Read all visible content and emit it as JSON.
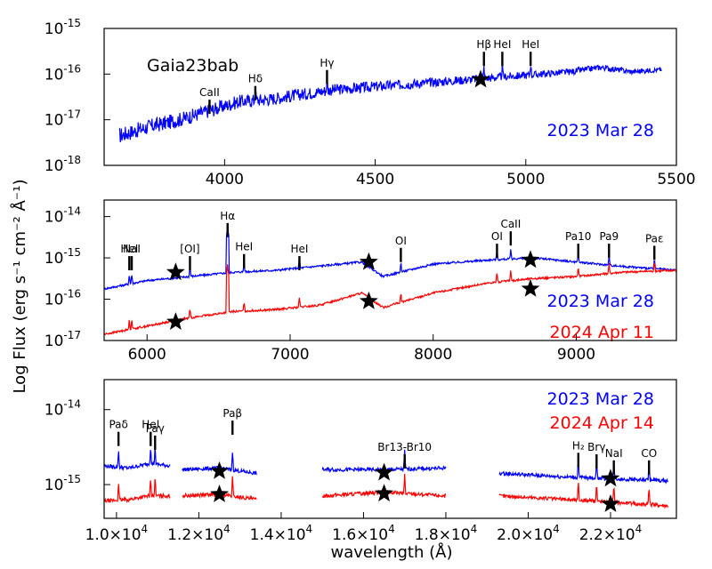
{
  "chart_data": [
    {
      "type": "line",
      "object": "Gaia23bab",
      "xlim": [
        3600,
        5500
      ],
      "ylim_log10": [
        -18,
        -15
      ],
      "xticks": [
        4000,
        4500,
        5000,
        5500
      ],
      "xtick_labels": [
        "4000",
        "4500",
        "5000",
        "5500"
      ],
      "ytick_labels": [
        {
          "base": "10",
          "exp": "-15"
        },
        {
          "base": "10",
          "exp": "-16"
        },
        {
          "base": "10",
          "exp": "-17"
        },
        {
          "base": "10",
          "exp": "-18"
        }
      ],
      "series": [
        {
          "name": "2023 Mar 28",
          "color": "#0000ff",
          "x": [
            3650,
            3750,
            3850,
            3950,
            4050,
            4150,
            4250,
            4350,
            4450,
            4550,
            4650,
            4750,
            4850,
            4950,
            5050,
            5150,
            5250,
            5350,
            5450
          ],
          "log_flux": [
            -17.35,
            -17.15,
            -17.0,
            -16.8,
            -16.6,
            -16.55,
            -16.45,
            -16.35,
            -16.3,
            -16.25,
            -16.2,
            -16.15,
            -16.1,
            -16.05,
            -16.0,
            -15.95,
            -15.85,
            -15.95,
            -15.9
          ]
        }
      ],
      "photometry": [
        {
          "x": 4850,
          "log_flux": -16.12
        }
      ],
      "line_labels": [
        {
          "text": "CaII",
          "x": 3950,
          "log_flux": -16.6
        },
        {
          "text": "Hδ",
          "x": 4102,
          "log_flux": -16.3
        },
        {
          "text": "Hγ",
          "x": 4340,
          "log_flux": -15.95
        },
        {
          "text": "Hβ",
          "x": 4861,
          "log_flux": -15.55
        },
        {
          "text": "HeI",
          "x": 4922,
          "log_flux": -15.55
        },
        {
          "text": "HeI",
          "x": 5016,
          "log_flux": -15.55
        }
      ],
      "legend": [
        {
          "text": "2023 Mar 28",
          "color": "#0000ff"
        }
      ]
    },
    {
      "type": "line",
      "xlim": [
        5700,
        9700
      ],
      "ylim_log10": [
        -17,
        -13.6
      ],
      "xticks": [
        6000,
        7000,
        8000,
        9000
      ],
      "xtick_labels": [
        "6000",
        "7000",
        "8000",
        "9000"
      ],
      "ytick_labels": [
        {
          "base": "10",
          "exp": "-14"
        },
        {
          "base": "10",
          "exp": "-15"
        },
        {
          "base": "10",
          "exp": "-16"
        },
        {
          "base": "10",
          "exp": "-17"
        }
      ],
      "series": [
        {
          "name": "2023 Mar 28",
          "color": "#0000ff",
          "x": [
            5700,
            6000,
            6300,
            6600,
            6900,
            7200,
            7500,
            7650,
            8000,
            8400,
            8700,
            9000,
            9300,
            9700
          ],
          "log_flux": [
            -15.75,
            -15.55,
            -15.45,
            -15.35,
            -15.3,
            -15.2,
            -15.1,
            -15.45,
            -15.15,
            -15.05,
            -15.0,
            -15.1,
            -15.2,
            -15.3
          ]
        },
        {
          "name": "2024 Apr 11",
          "color": "#ff0000",
          "x": [
            5700,
            6000,
            6300,
            6600,
            6900,
            7200,
            7500,
            7650,
            8000,
            8400,
            8700,
            9000,
            9300,
            9700
          ],
          "log_flux": [
            -16.85,
            -16.65,
            -16.45,
            -16.3,
            -16.25,
            -16.15,
            -15.85,
            -16.2,
            -15.85,
            -15.6,
            -15.5,
            -15.45,
            -15.35,
            -15.3
          ]
        }
      ],
      "photometry": [
        {
          "x": 6200,
          "log_flux": -15.35
        },
        {
          "x": 7550,
          "log_flux": -15.1
        },
        {
          "x": 8680,
          "log_flux": -15.05
        },
        {
          "x": 6200,
          "log_flux": -16.55
        },
        {
          "x": 7550,
          "log_flux": -16.05
        },
        {
          "x": 8680,
          "log_flux": -15.75
        }
      ],
      "line_labels": [
        {
          "text": "HeI",
          "x": 5876,
          "log_flux": -15.0
        },
        {
          "text": "NaI",
          "x": 5893,
          "log_flux": -15.0
        },
        {
          "text": "[OI]",
          "x": 6300,
          "log_flux": -15.0
        },
        {
          "text": "Hα",
          "x": 6563,
          "log_flux": -14.2
        },
        {
          "text": "HeI",
          "x": 6678,
          "log_flux": -14.95
        },
        {
          "text": "HeI",
          "x": 7065,
          "log_flux": -15.0
        },
        {
          "text": "OI",
          "x": 7774,
          "log_flux": -14.8
        },
        {
          "text": "OI",
          "x": 8446,
          "log_flux": -14.7
        },
        {
          "text": "CaII",
          "x": 8542,
          "log_flux": -14.4
        },
        {
          "text": "Pa10",
          "x": 9014,
          "log_flux": -14.7
        },
        {
          "text": "Pa9",
          "x": 9229,
          "log_flux": -14.7
        },
        {
          "text": "Paε",
          "x": 9546,
          "log_flux": -14.75
        }
      ],
      "legend": [
        {
          "text": "2023 Mar 28",
          "color": "#0000ff"
        },
        {
          "text": "2024 Apr 11",
          "color": "#ff0000"
        }
      ]
    },
    {
      "type": "line",
      "xlim": [
        9700,
        23600
      ],
      "ylim_log10": [
        -15.45,
        -13.6
      ],
      "xticks": [
        10000,
        12000,
        14000,
        16000,
        18000,
        20000,
        22000
      ],
      "xtick_labels": [
        {
          "mant": "1.0×10",
          "exp": "4"
        },
        {
          "mant": "1.2×10",
          "exp": "4"
        },
        {
          "mant": "1.4×10",
          "exp": "4"
        },
        {
          "mant": "1.6×10",
          "exp": "4"
        },
        {
          "mant": "1.8×10",
          "exp": "4"
        },
        {
          "mant": "2.0×10",
          "exp": "4"
        },
        {
          "mant": "2.2×10",
          "exp": "4"
        }
      ],
      "ytick_labels": [
        {
          "base": "10",
          "exp": "-14"
        },
        {
          "base": "10",
          "exp": "-15"
        }
      ],
      "series": [
        {
          "name": "2023 Mar 28",
          "color": "#0000ff",
          "segments": [
            {
              "x": [
                9700,
                10300,
                10800,
                11300
              ],
              "log_flux": [
                -14.75,
                -14.78,
                -14.72,
                -14.75
              ]
            },
            {
              "x": [
                11600,
                12500,
                13400
              ],
              "log_flux": [
                -14.8,
                -14.78,
                -14.85
              ]
            },
            {
              "x": [
                15000,
                16500,
                18000
              ],
              "log_flux": [
                -14.8,
                -14.8,
                -14.78
              ]
            },
            {
              "x": [
                19300,
                21000,
                23400
              ],
              "log_flux": [
                -14.85,
                -14.9,
                -14.95
              ]
            }
          ]
        },
        {
          "name": "2024 Apr 14",
          "color": "#ff0000",
          "segments": [
            {
              "x": [
                9700,
                10300,
                10800,
                11300
              ],
              "log_flux": [
                -15.22,
                -15.2,
                -15.15,
                -15.15
              ]
            },
            {
              "x": [
                11600,
                12500,
                13400
              ],
              "log_flux": [
                -15.15,
                -15.13,
                -15.2
              ]
            },
            {
              "x": [
                15000,
                16500,
                18000
              ],
              "log_flux": [
                -15.15,
                -15.1,
                -15.15
              ]
            },
            {
              "x": [
                19300,
                21000,
                23400
              ],
              "log_flux": [
                -15.15,
                -15.2,
                -15.28
              ]
            }
          ]
        }
      ],
      "photometry": [
        {
          "x": 12500,
          "log_flux": -14.82
        },
        {
          "x": 16500,
          "log_flux": -14.84
        },
        {
          "x": 22000,
          "log_flux": -14.92
        },
        {
          "x": 12500,
          "log_flux": -15.13
        },
        {
          "x": 16500,
          "log_flux": -15.12
        },
        {
          "x": 22000,
          "log_flux": -15.26
        }
      ],
      "line_labels": [
        {
          "text": "Paδ",
          "x": 10049,
          "log_flux": -14.32
        },
        {
          "text": "HeI",
          "x": 10830,
          "log_flux": -14.32
        },
        {
          "text": "Paγ",
          "x": 10938,
          "log_flux": -14.37
        },
        {
          "text": "Paβ",
          "x": 12818,
          "log_flux": -14.17
        },
        {
          "text": "Br13-Br10",
          "x": 17000,
          "log_flux": -14.62
        },
        {
          "text": "H₂",
          "x": 21218,
          "log_flux": -14.6
        },
        {
          "text": "Brγ",
          "x": 21661,
          "log_flux": -14.62
        },
        {
          "text": "NaI",
          "x": 22080,
          "log_flux": -14.7
        },
        {
          "text": "CO",
          "x": 22935,
          "log_flux": -14.7
        }
      ],
      "legend": [
        {
          "text": "2023 Mar 28",
          "color": "#0000ff"
        },
        {
          "text": "2024 Apr 14",
          "color": "#ff0000"
        }
      ]
    }
  ],
  "axes": {
    "ylabel": "Log Flux (erg s⁻¹ cm⁻² Å⁻¹)",
    "xlabel": "wavelength (Å)"
  }
}
